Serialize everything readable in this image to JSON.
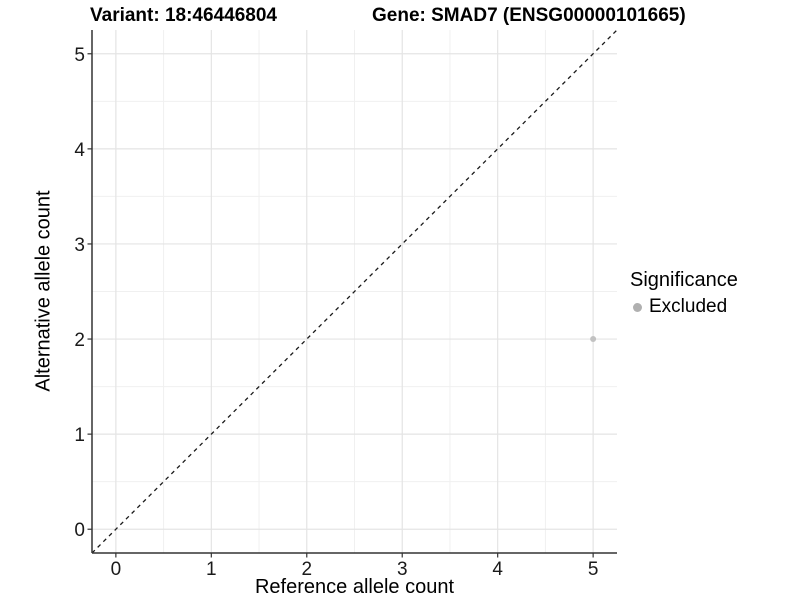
{
  "chart_data": {
    "type": "scatter",
    "title_left": "Variant: 18:46446804",
    "title_right": "Gene: SMAD7 (ENSG00000101665)",
    "xlabel": "Reference allele count",
    "ylabel": "Alternative allele count",
    "xlim": [
      -0.25,
      5.25
    ],
    "ylim": [
      -0.25,
      5.25
    ],
    "x_ticks": [
      0,
      1,
      2,
      3,
      4,
      5
    ],
    "y_ticks": [
      0,
      1,
      2,
      3,
      4,
      5
    ],
    "x_minor_ticks": [
      0.5,
      1.5,
      2.5,
      3.5,
      4.5
    ],
    "y_minor_ticks": [
      0.5,
      1.5,
      2.5,
      3.5,
      4.5
    ],
    "grid": "major and minor gridlines on white background",
    "reference_line": {
      "kind": "identity-diagonal",
      "linetype": "dashed",
      "from": [
        -0.25,
        -0.25
      ],
      "to": [
        5.25,
        5.25
      ],
      "color": "#1a1a1a"
    },
    "series": [
      {
        "name": "Excluded",
        "color": "#c2c2c2",
        "points": [
          {
            "x": 5,
            "y": 2
          }
        ]
      }
    ],
    "legend": {
      "title": "Significance",
      "position": "right",
      "entries": [
        {
          "label": "Excluded",
          "color": "#b0b0b0"
        }
      ]
    },
    "colors": {
      "background": "#ffffff",
      "grid_major": "#e4e4e4",
      "grid_minor": "#f0f0f0",
      "axis_line": "#333333",
      "tick_mark": "#333333",
      "tick_label": "#1a1a1a",
      "point": "#c2c2c2",
      "dashed_line": "#1a1a1a"
    }
  }
}
